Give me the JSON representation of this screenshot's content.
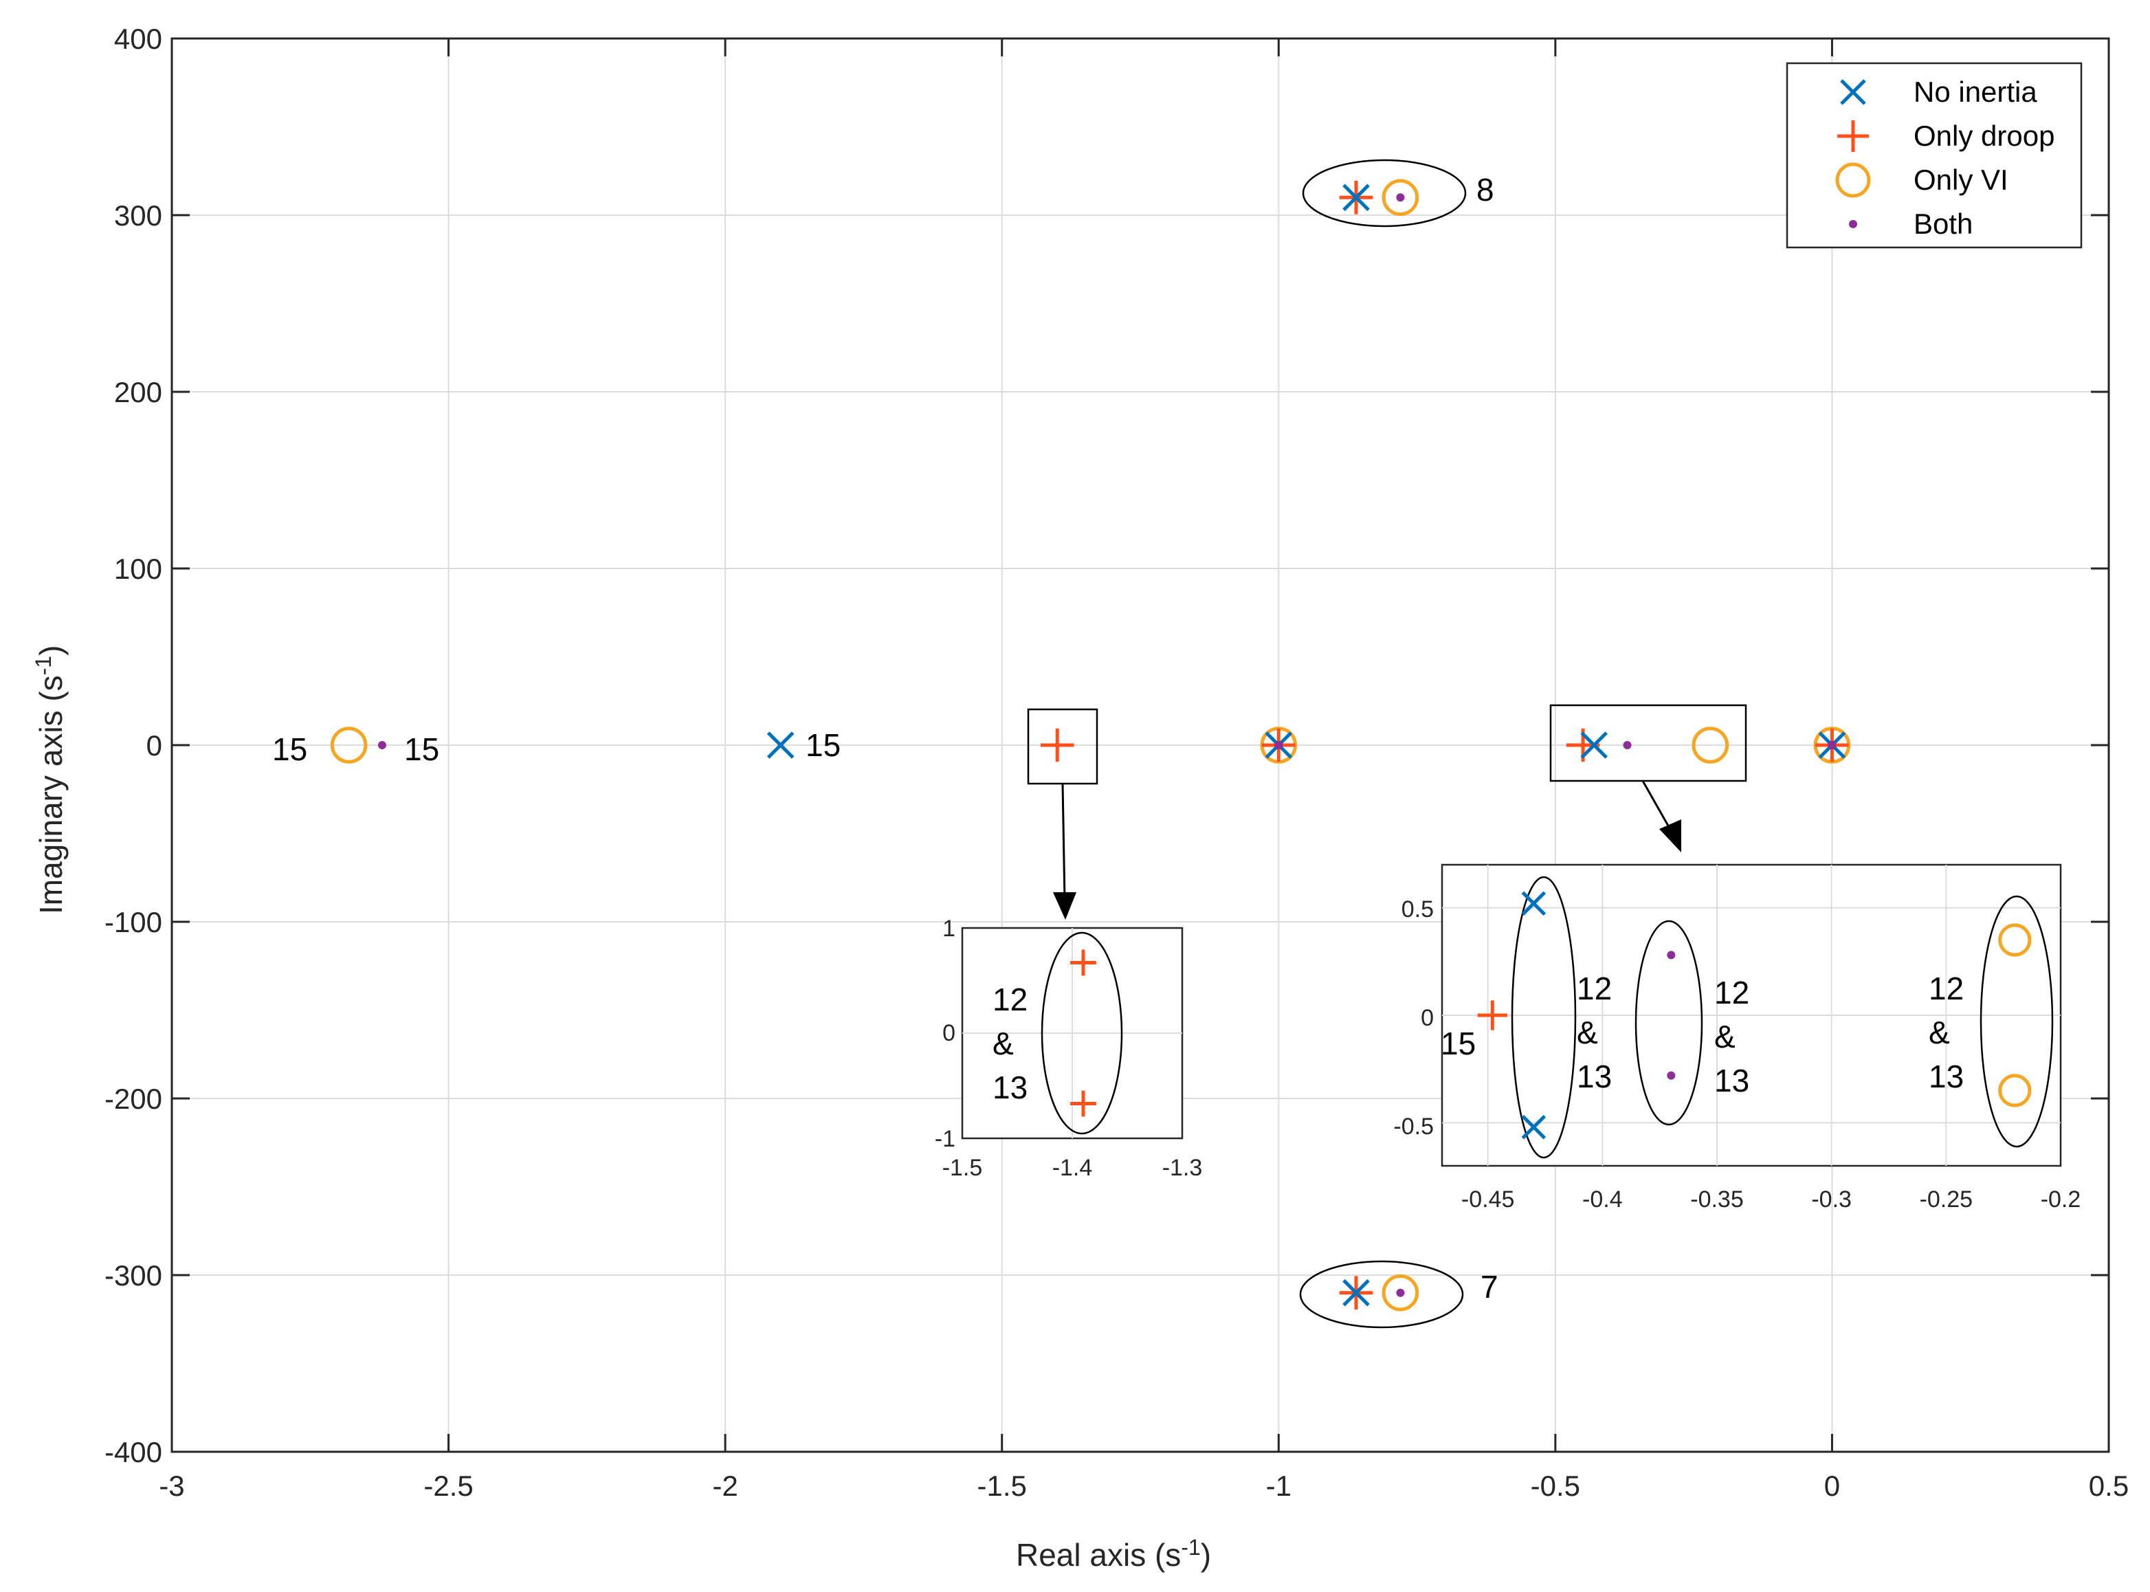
{
  "chart_data": {
    "type": "scatter",
    "title": "",
    "xlabel": "Real axis (s",
    "xlabel_sup": "-1",
    "xlabel_end": ")",
    "ylabel": "Imaginary axis (s",
    "ylabel_sup": "-1",
    "ylabel_end": ")",
    "xlim": [
      -3,
      0.5
    ],
    "ylim": [
      -400,
      400
    ],
    "xticks": [
      -3,
      -2.5,
      -2,
      -1.5,
      -1,
      -0.5,
      0,
      0.5
    ],
    "xtick_labels": [
      "-3",
      "-2.5",
      "-2",
      "-1.5",
      "-1",
      "-0.5",
      "0",
      "0.5"
    ],
    "yticks": [
      -400,
      -300,
      -200,
      -100,
      0,
      100,
      200,
      300,
      400
    ],
    "ytick_labels": [
      "-400",
      "-300",
      "-200",
      "-100",
      "0",
      "100",
      "200",
      "300",
      "400"
    ],
    "grid": true,
    "legend_position": "top-right",
    "series": [
      {
        "name": "No inertia",
        "marker": "x",
        "color": "#0072BD",
        "points": [
          [
            -0.86,
            310
          ],
          [
            -0.86,
            -310
          ],
          [
            -1.9,
            0
          ],
          [
            -1.0,
            0
          ],
          [
            -0.43,
            0
          ],
          [
            0.0,
            0
          ]
        ]
      },
      {
        "name": "Only droop",
        "marker": "+",
        "color": "#FF4F1A",
        "points": [
          [
            -0.86,
            310
          ],
          [
            -0.86,
            -310
          ],
          [
            -1.4,
            0
          ],
          [
            -0.45,
            0
          ],
          [
            -1.0,
            0
          ],
          [
            0.0,
            0
          ]
        ]
      },
      {
        "name": "Only VI",
        "marker": "o",
        "color": "#F5A623",
        "points": [
          [
            -0.78,
            310
          ],
          [
            -0.78,
            -310
          ],
          [
            -2.68,
            0
          ],
          [
            -1.0,
            0
          ],
          [
            -0.22,
            0
          ],
          [
            0.0,
            0
          ]
        ]
      },
      {
        "name": "Both",
        "marker": ".",
        "color": "#8E2C9A",
        "points": [
          [
            -0.78,
            310
          ],
          [
            -0.78,
            -310
          ],
          [
            -2.62,
            0
          ],
          [
            -1.0,
            0
          ],
          [
            -0.37,
            0
          ],
          [
            0.0,
            0
          ]
        ]
      }
    ],
    "annotations": [
      {
        "text": "8",
        "x": -0.63,
        "y": 315
      },
      {
        "text": "7",
        "x": -0.63,
        "y": -305
      },
      {
        "text": "15",
        "x": -2.83,
        "y": -2
      },
      {
        "text": "15",
        "x": -2.57,
        "y": -2
      },
      {
        "text": "15",
        "x": -1.83,
        "y": 0
      }
    ],
    "insets": [
      {
        "name": "inset-droop",
        "xlim": [
          -1.5,
          -1.3
        ],
        "ylim": [
          -1,
          1
        ],
        "xtick_labels": [
          "-1.5",
          "-1.4",
          "-1.3"
        ],
        "ytick_labels": [
          "1",
          "0",
          "-1"
        ],
        "points": [
          {
            "series": "Only droop",
            "x": -1.39,
            "y": 0.67
          },
          {
            "series": "Only droop",
            "x": -1.39,
            "y": -0.67
          }
        ],
        "labels": [
          "12",
          "&",
          "13"
        ]
      },
      {
        "name": "inset-right",
        "xlim": [
          -0.47,
          -0.2
        ],
        "ylim": [
          -0.7,
          0.7
        ],
        "xtick_labels": [
          "-0.45",
          "-0.4",
          "-0.35",
          "-0.3",
          "-0.25",
          "-0.2"
        ],
        "ytick_labels": [
          "0.5",
          "0",
          "-0.5"
        ],
        "points": [
          {
            "series": "No inertia",
            "x": -0.43,
            "y": 0.52
          },
          {
            "series": "No inertia",
            "x": -0.43,
            "y": -0.52
          },
          {
            "series": "Only droop",
            "x": -0.448,
            "y": 0
          },
          {
            "series": "Both",
            "x": -0.37,
            "y": 0.28
          },
          {
            "series": "Both",
            "x": -0.37,
            "y": -0.28
          },
          {
            "series": "Only VI",
            "x": -0.22,
            "y": 0.35
          },
          {
            "series": "Only VI",
            "x": -0.22,
            "y": -0.35
          }
        ],
        "label_15": "15",
        "group_labels": [
          [
            "12",
            "&",
            "13"
          ],
          [
            "12",
            "&",
            "13"
          ],
          [
            "12",
            "&",
            "13"
          ]
        ]
      }
    ]
  }
}
